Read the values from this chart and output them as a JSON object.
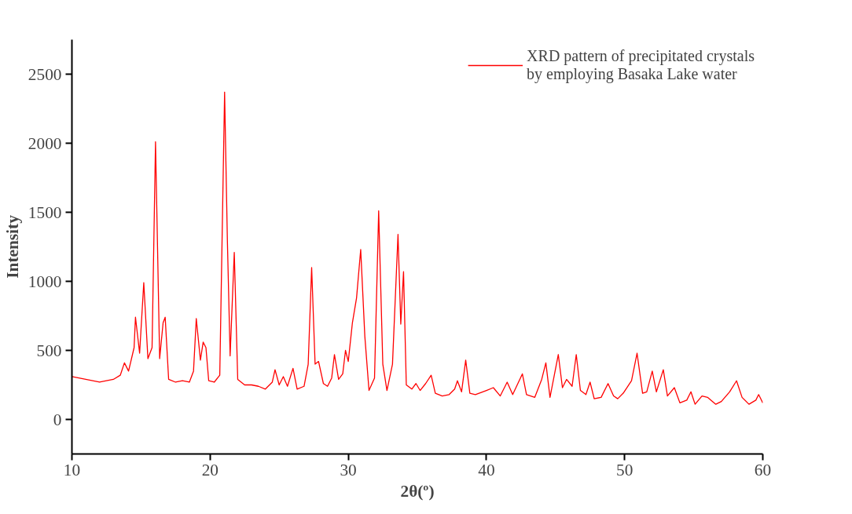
{
  "chart_data": {
    "type": "line",
    "xlabel": "2θ(º)",
    "ylabel": "Intensity",
    "xlim": [
      10,
      60
    ],
    "xticks": [
      10,
      20,
      30,
      40,
      50,
      60
    ],
    "ylim": [
      -250,
      2750
    ],
    "yticks": [
      0,
      500,
      1000,
      1500,
      2000,
      2500
    ],
    "grid": false,
    "legend": "top right",
    "marker": "none",
    "line_style": "solid",
    "series": [
      {
        "name": "XRD pattern of precipitated crystals\nby employing Basaka Lake water",
        "color": "#ff0000",
        "x": [
          10,
          11,
          12,
          13,
          13.5,
          13.8,
          14.1,
          14.5,
          14.6,
          14.9,
          15.2,
          15.5,
          15.8,
          16.05,
          16.35,
          16.6,
          16.75,
          17.0,
          17.5,
          18.0,
          18.5,
          18.8,
          19.0,
          19.3,
          19.5,
          19.7,
          19.9,
          20.3,
          20.7,
          21.05,
          21.25,
          21.45,
          21.75,
          22.0,
          22.5,
          23,
          23.5,
          24,
          24.5,
          24.7,
          25.0,
          25.3,
          25.6,
          26.0,
          26.3,
          26.8,
          27.1,
          27.35,
          27.6,
          27.85,
          28.2,
          28.5,
          28.8,
          29.0,
          29.3,
          29.6,
          29.8,
          30.0,
          30.3,
          30.6,
          30.9,
          31.2,
          31.5,
          31.9,
          32.2,
          32.5,
          32.8,
          33.2,
          33.6,
          33.8,
          34.0,
          34.2,
          34.6,
          34.9,
          35.2,
          35.6,
          36.0,
          36.3,
          36.8,
          37.3,
          37.7,
          37.9,
          38.2,
          38.5,
          38.8,
          39.2,
          40,
          40.5,
          41,
          41.5,
          41.9,
          42.6,
          42.9,
          43.5,
          44.0,
          44.3,
          44.6,
          45.2,
          45.5,
          45.8,
          46.2,
          46.5,
          46.8,
          47.2,
          47.5,
          47.8,
          48.3,
          48.8,
          49.2,
          49.5,
          49.9,
          50.5,
          50.9,
          51.3,
          51.6,
          52.0,
          52.3,
          52.8,
          53.1,
          53.6,
          54.0,
          54.5,
          54.8,
          55.1,
          55.6,
          56.0,
          56.6,
          57.0,
          57.6,
          58.1,
          58.5,
          59.0,
          59.5,
          59.7,
          60
        ],
        "values": [
          310,
          290,
          270,
          290,
          320,
          410,
          350,
          520,
          740,
          480,
          990,
          440,
          520,
          2010,
          440,
          700,
          740,
          290,
          270,
          280,
          270,
          350,
          730,
          430,
          560,
          520,
          280,
          270,
          320,
          2370,
          1300,
          460,
          1210,
          290,
          250,
          250,
          240,
          220,
          270,
          360,
          250,
          310,
          240,
          370,
          220,
          240,
          400,
          1100,
          400,
          420,
          260,
          240,
          300,
          470,
          290,
          330,
          500,
          420,
          700,
          880,
          1230,
          600,
          210,
          300,
          1510,
          400,
          210,
          400,
          1340,
          690,
          1070,
          250,
          220,
          260,
          210,
          260,
          320,
          190,
          170,
          180,
          220,
          280,
          200,
          430,
          190,
          180,
          210,
          230,
          170,
          270,
          180,
          330,
          180,
          160,
          290,
          410,
          160,
          470,
          230,
          290,
          240,
          470,
          210,
          180,
          270,
          150,
          160,
          260,
          170,
          150,
          190,
          280,
          480,
          190,
          200,
          350,
          200,
          360,
          170,
          230,
          120,
          140,
          200,
          110,
          170,
          160,
          110,
          130,
          200,
          280,
          160,
          110,
          140,
          180,
          120
        ]
      }
    ]
  }
}
